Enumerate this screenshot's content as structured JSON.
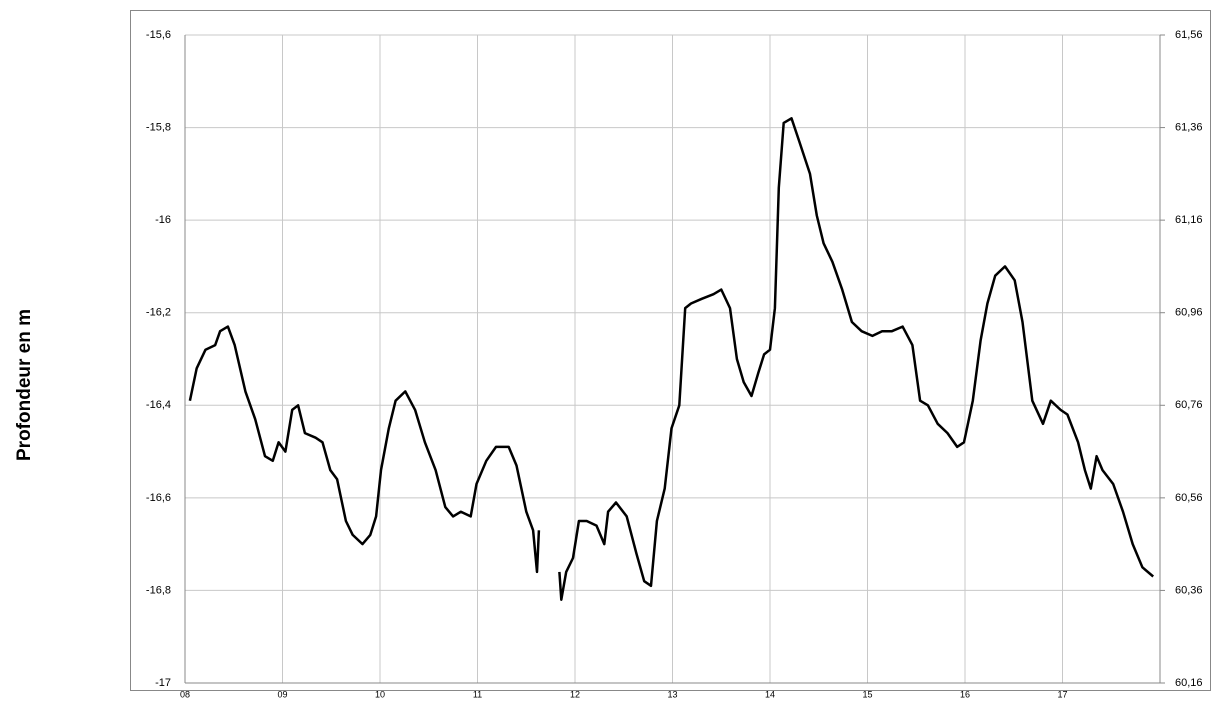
{
  "chart_data": {
    "type": "line",
    "y_label": "Profondeur en m",
    "color": "#000000",
    "grid": true,
    "xlim": [
      8,
      18
    ],
    "xticks": [
      {
        "value": 8,
        "label": "08"
      },
      {
        "value": 9,
        "label": "09"
      },
      10,
      11,
      12,
      13,
      14,
      15,
      16,
      17
    ],
    "ylim": [
      -17,
      -15.6
    ],
    "yticks": [
      {
        "value": -15.6,
        "label": "-15,6"
      },
      {
        "value": -15.8,
        "label": "-15,8"
      },
      -16,
      {
        "value": -16.2,
        "label": "-16,2"
      },
      {
        "value": -16.4,
        "label": "-16,4"
      },
      {
        "value": -16.6,
        "label": "-16,6"
      },
      {
        "value": -16.8,
        "label": "-16,8"
      },
      -17
    ],
    "y2lim": [
      60.16,
      61.56
    ],
    "y2ticks": [
      {
        "value": 61.56,
        "label": "61,56"
      },
      {
        "value": 61.36,
        "label": "61,36"
      },
      {
        "value": 61.16,
        "label": "61,16"
      },
      {
        "value": 60.96,
        "label": "60,96"
      },
      {
        "value": 60.76,
        "label": "60,76"
      },
      {
        "value": 60.56,
        "label": "60,56"
      },
      {
        "value": 60.36,
        "label": "60,36"
      },
      {
        "value": 60.16,
        "label": "60,16"
      }
    ],
    "x": [
      8.05,
      8.12,
      8.21,
      8.31,
      8.36,
      8.44,
      8.51,
      8.62,
      8.72,
      8.82,
      8.9,
      8.96,
      9.03,
      9.1,
      9.16,
      9.23,
      9.34,
      9.41,
      9.49,
      9.56,
      9.65,
      9.72,
      9.82,
      9.9,
      9.96,
      10.01,
      10.09,
      10.16,
      10.26,
      10.36,
      10.46,
      10.57,
      10.67,
      10.75,
      10.83,
      10.93,
      10.99,
      11.09,
      11.19,
      11.32,
      11.4,
      11.5,
      11.57,
      11.61,
      11.63,
      11.73,
      11.84,
      11.86,
      11.91,
      11.98,
      12.04,
      12.12,
      12.22,
      12.3,
      12.34,
      12.42,
      12.53,
      12.63,
      12.71,
      12.78,
      12.84,
      12.92,
      12.99,
      13.07,
      13.13,
      13.19,
      13.3,
      13.42,
      13.5,
      13.59,
      13.66,
      13.73,
      13.81,
      13.88,
      13.94,
      14.0,
      14.05,
      14.09,
      14.14,
      14.22,
      14.3,
      14.41,
      14.48,
      14.55,
      14.64,
      14.74,
      14.84,
      14.94,
      15.05,
      15.15,
      15.25,
      15.36,
      15.46,
      15.54,
      15.62,
      15.72,
      15.82,
      15.92,
      15.99,
      16.08,
      16.16,
      16.23,
      16.31,
      16.41,
      16.51,
      16.59,
      16.69,
      16.8,
      16.88,
      16.98,
      17.05,
      17.16,
      17.23,
      17.29,
      17.35,
      17.41,
      17.52,
      17.62,
      17.72,
      17.82,
      17.93
    ],
    "values": [
      -16.39,
      -16.32,
      -16.28,
      -16.27,
      -16.24,
      -16.23,
      -16.27,
      -16.37,
      -16.43,
      -16.51,
      -16.52,
      -16.48,
      -16.5,
      -16.41,
      -16.4,
      -16.46,
      -16.47,
      -16.48,
      -16.54,
      -16.56,
      -16.65,
      -16.68,
      -16.7,
      -16.68,
      -16.64,
      -16.54,
      -16.45,
      -16.39,
      -16.37,
      -16.41,
      -16.48,
      -16.54,
      -16.62,
      -16.64,
      -16.63,
      -16.64,
      -16.57,
      -16.52,
      -16.49,
      -16.49,
      -16.53,
      -16.63,
      -16.67,
      -16.76,
      -16.67,
      null,
      -16.76,
      -16.82,
      -16.76,
      -16.73,
      -16.65,
      -16.65,
      -16.66,
      -16.7,
      -16.63,
      -16.61,
      -16.64,
      -16.72,
      -16.78,
      -16.79,
      -16.65,
      -16.58,
      -16.45,
      -16.4,
      -16.19,
      -16.18,
      -16.17,
      -16.16,
      -16.15,
      -16.19,
      -16.3,
      -16.35,
      -16.38,
      -16.33,
      -16.29,
      -16.28,
      -16.19,
      -15.93,
      -15.79,
      -15.78,
      -15.83,
      -15.9,
      -15.99,
      -16.05,
      -16.09,
      -16.15,
      -16.22,
      -16.24,
      -16.25,
      -16.24,
      -16.24,
      -16.23,
      -16.27,
      -16.39,
      -16.4,
      -16.44,
      -16.46,
      -16.49,
      -16.48,
      -16.39,
      -16.26,
      -16.18,
      -16.12,
      -16.1,
      -16.13,
      -16.22,
      -16.39,
      -16.44,
      -16.39,
      -16.41,
      -16.42,
      -16.48,
      -16.54,
      -16.58,
      -16.51,
      -16.54,
      -16.57,
      -16.63,
      -16.7,
      -16.75,
      -16.77
    ]
  }
}
